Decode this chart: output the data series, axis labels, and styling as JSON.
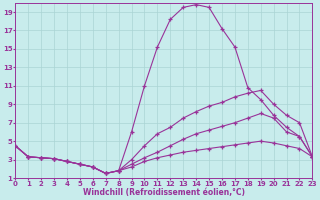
{
  "xlabel": "Windchill (Refroidissement éolien,°C)",
  "background_color": "#c8ecec",
  "grid_color": "#aad4d4",
  "line_color": "#993399",
  "x_min": 0,
  "x_max": 23,
  "y_min": 1,
  "y_max": 20,
  "x_ticks": [
    0,
    1,
    2,
    3,
    4,
    5,
    6,
    7,
    8,
    9,
    10,
    11,
    12,
    13,
    14,
    15,
    16,
    17,
    18,
    19,
    20,
    21,
    22,
    23
  ],
  "y_ticks": [
    1,
    3,
    5,
    7,
    9,
    11,
    13,
    15,
    17,
    19
  ],
  "curve1_x": [
    0,
    1,
    2,
    3,
    4,
    5,
    6,
    7,
    8,
    9,
    10,
    11,
    12,
    13,
    14,
    15,
    16,
    17,
    18,
    19,
    20,
    21,
    22,
    23
  ],
  "curve1_y": [
    4.5,
    3.3,
    3.2,
    3.1,
    2.8,
    2.5,
    2.2,
    1.5,
    1.8,
    6.0,
    11.0,
    15.2,
    18.2,
    19.5,
    19.8,
    19.5,
    17.2,
    15.2,
    10.8,
    9.5,
    7.8,
    6.5,
    5.5,
    3.3
  ],
  "curve2_x": [
    0,
    1,
    2,
    3,
    4,
    5,
    6,
    7,
    8,
    9,
    10,
    11,
    12,
    13,
    14,
    15,
    16,
    17,
    18,
    19,
    20,
    21,
    22,
    23
  ],
  "curve2_y": [
    4.5,
    3.3,
    3.2,
    3.1,
    2.8,
    2.5,
    2.2,
    1.5,
    1.8,
    3.0,
    4.5,
    5.8,
    6.5,
    7.5,
    8.2,
    8.8,
    9.2,
    9.8,
    10.2,
    10.5,
    9.0,
    7.8,
    7.0,
    3.3
  ],
  "curve3_x": [
    0,
    1,
    2,
    3,
    4,
    5,
    6,
    7,
    8,
    9,
    10,
    11,
    12,
    13,
    14,
    15,
    16,
    17,
    18,
    19,
    20,
    21,
    22,
    23
  ],
  "curve3_y": [
    4.5,
    3.3,
    3.2,
    3.1,
    2.8,
    2.5,
    2.2,
    1.5,
    1.8,
    2.5,
    3.2,
    3.8,
    4.5,
    5.2,
    5.8,
    6.2,
    6.6,
    7.0,
    7.5,
    8.0,
    7.5,
    6.0,
    5.5,
    3.3
  ],
  "curve4_x": [
    0,
    1,
    2,
    3,
    4,
    5,
    6,
    7,
    8,
    9,
    10,
    11,
    12,
    13,
    14,
    15,
    16,
    17,
    18,
    19,
    20,
    21,
    22,
    23
  ],
  "curve4_y": [
    4.5,
    3.3,
    3.2,
    3.1,
    2.8,
    2.5,
    2.2,
    1.5,
    1.8,
    2.2,
    2.8,
    3.2,
    3.5,
    3.8,
    4.0,
    4.2,
    4.4,
    4.6,
    4.8,
    5.0,
    4.8,
    4.5,
    4.2,
    3.3
  ]
}
